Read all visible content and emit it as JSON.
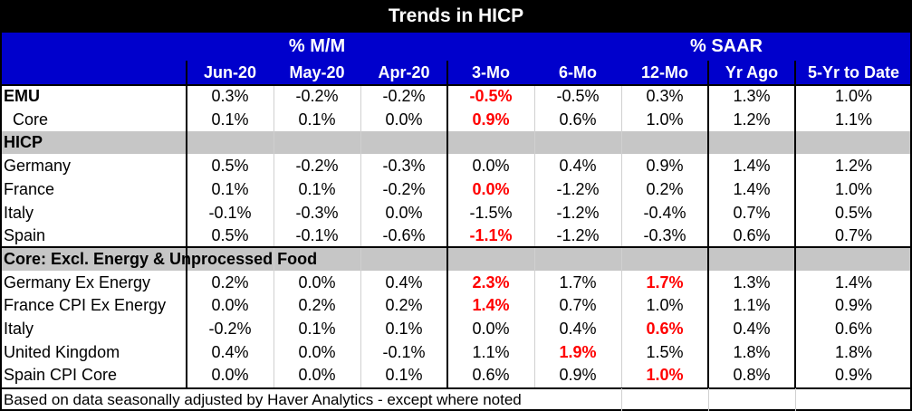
{
  "title": "Trends in HICP",
  "group_headers": {
    "mm": "% M/M",
    "saar": "% SAAR"
  },
  "columns": [
    "Jun-20",
    "May-20",
    "Apr-20",
    "3-Mo",
    "6-Mo",
    "12-Mo",
    "Yr Ago",
    "5-Yr to Date"
  ],
  "rows": [
    {
      "label": "EMU",
      "bold": true,
      "values": [
        "0.3%",
        "-0.2%",
        "-0.2%",
        "-0.5%",
        "-0.5%",
        "0.3%",
        "1.3%",
        "1.0%"
      ],
      "red": [
        3
      ]
    },
    {
      "label": "  Core",
      "values": [
        "0.1%",
        "0.1%",
        "0.0%",
        "0.9%",
        "0.6%",
        "1.0%",
        "1.2%",
        "1.1%"
      ],
      "red": [
        3
      ]
    },
    {
      "label": "HICP",
      "bold": true,
      "section": true,
      "values": []
    },
    {
      "label": "Germany",
      "values": [
        "0.5%",
        "-0.2%",
        "-0.3%",
        "0.0%",
        "0.4%",
        "0.9%",
        "1.4%",
        "1.2%"
      ],
      "red": []
    },
    {
      "label": "France",
      "values": [
        "0.1%",
        "0.1%",
        "-0.2%",
        "0.0%",
        "-1.2%",
        "0.2%",
        "1.4%",
        "1.0%"
      ],
      "red": [
        3
      ]
    },
    {
      "label": "Italy",
      "values": [
        "-0.1%",
        "-0.3%",
        "0.0%",
        "-1.5%",
        "-1.2%",
        "-0.4%",
        "0.7%",
        "0.5%"
      ],
      "red": []
    },
    {
      "label": "Spain",
      "values": [
        "0.5%",
        "-0.1%",
        "-0.6%",
        "-1.1%",
        "-1.2%",
        "-0.3%",
        "0.6%",
        "0.7%"
      ],
      "red": [
        3
      ]
    },
    {
      "label": "Core: Excl. Energy & Unprocessed Food",
      "bold": true,
      "section": true,
      "values": []
    },
    {
      "label": "Germany Ex Energy",
      "values": [
        "0.2%",
        "0.0%",
        "0.4%",
        "2.3%",
        "1.7%",
        "1.7%",
        "1.3%",
        "1.4%"
      ],
      "red": [
        3,
        5
      ]
    },
    {
      "label": "France CPI Ex Energy",
      "values": [
        "0.0%",
        "0.2%",
        "0.2%",
        "1.4%",
        "0.7%",
        "1.0%",
        "1.1%",
        "0.9%"
      ],
      "red": [
        3
      ]
    },
    {
      "label": "Italy",
      "values": [
        "-0.2%",
        "0.1%",
        "0.1%",
        "0.0%",
        "0.4%",
        "0.6%",
        "0.4%",
        "0.6%"
      ],
      "red": [
        5
      ]
    },
    {
      "label": "United Kingdom",
      "values": [
        "0.4%",
        "0.0%",
        "-0.1%",
        "1.1%",
        "1.9%",
        "1.5%",
        "1.8%",
        "1.8%"
      ],
      "red": [
        4
      ]
    },
    {
      "label": "Spain CPI Core",
      "values": [
        "0.0%",
        "0.0%",
        "0.1%",
        "0.6%",
        "0.9%",
        "1.0%",
        "0.8%",
        "0.9%"
      ],
      "red": [
        5
      ]
    }
  ],
  "footer": "Based on data seasonally adjusted by Haver Analytics - except where noted",
  "chart_data": {
    "type": "table",
    "title": "Trends in HICP",
    "column_groups": [
      {
        "name": "% M/M",
        "columns": [
          "Jun-20",
          "May-20",
          "Apr-20"
        ]
      },
      {
        "name": "% SAAR",
        "columns": [
          "3-Mo",
          "6-Mo",
          "12-Mo",
          "Yr Ago",
          "5-Yr to Date"
        ]
      }
    ],
    "colors": {
      "header_bg": "#0000cc",
      "title_bg": "#000000",
      "highlight": "#ff0000",
      "section_bg": "#c6c6c6"
    }
  }
}
